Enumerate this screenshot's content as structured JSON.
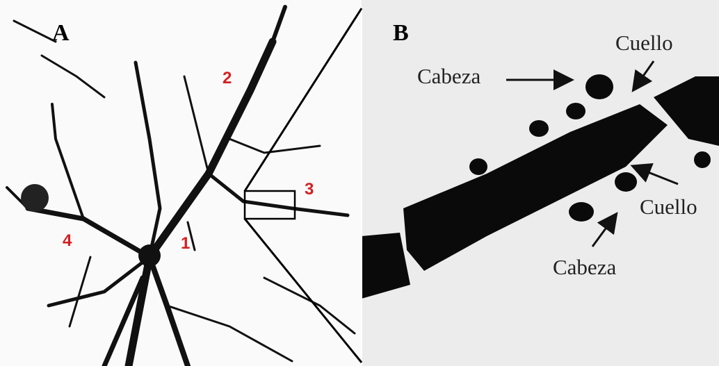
{
  "panels": [
    {
      "label": "A",
      "markers": [
        "1",
        "2",
        "3",
        "4"
      ]
    },
    {
      "label": "B",
      "annotations": [
        "Cabeza",
        "Cuello",
        "Cuello",
        "Cabeza"
      ]
    }
  ]
}
